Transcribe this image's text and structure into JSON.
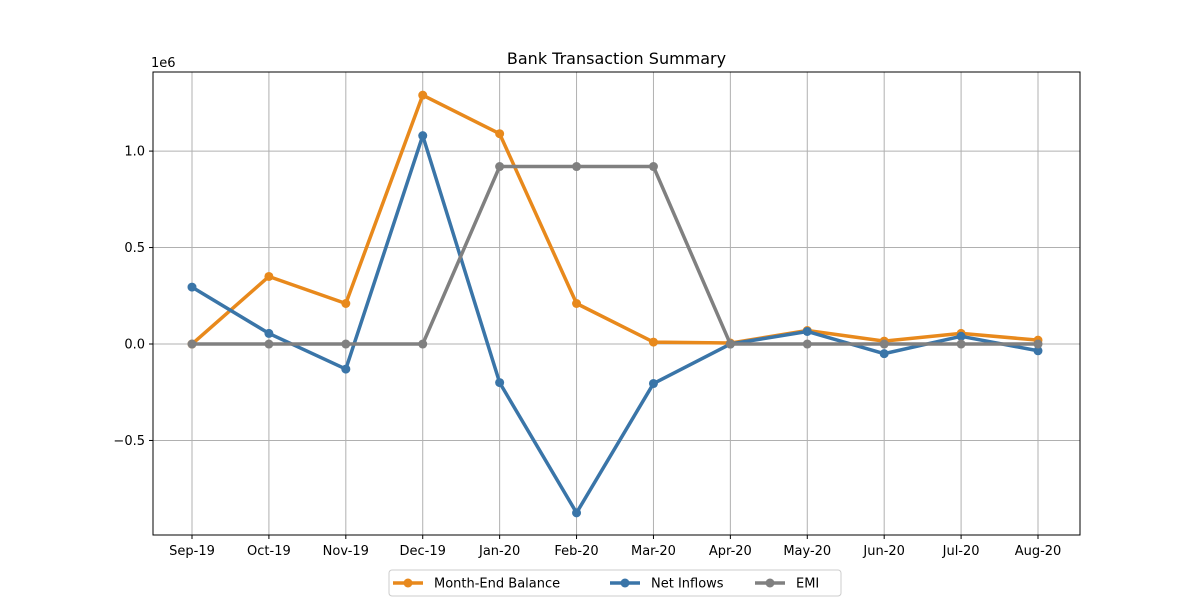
{
  "chart_data": {
    "type": "line",
    "title": "Bank Transaction Summary",
    "xlabel": "",
    "ylabel": "",
    "y_offset_label": "1e6",
    "categories": [
      "Sep-19",
      "Oct-19",
      "Nov-19",
      "Dec-19",
      "Jan-20",
      "Feb-20",
      "Mar-20",
      "Apr-20",
      "May-20",
      "Jun-20",
      "Jul-20",
      "Aug-20"
    ],
    "ylim": [
      -0.99,
      1.41
    ],
    "yticks": [
      -0.5,
      0.0,
      0.5,
      1.0
    ],
    "ytick_labels": [
      "−0.5",
      "0.0",
      "0.5",
      "1.0"
    ],
    "y_unit_scale": 1000000,
    "grid": true,
    "legend_position": "bottom-center",
    "series": [
      {
        "name": "Month-End Balance",
        "color": "#e8891c",
        "values": [
          0.0,
          0.35,
          0.21,
          1.29,
          1.09,
          0.21,
          0.01,
          0.005,
          0.07,
          0.015,
          0.055,
          0.02
        ]
      },
      {
        "name": "Net Inflows",
        "color": "#3a75a8",
        "values": [
          0.295,
          0.055,
          -0.13,
          1.08,
          -0.2,
          -0.875,
          -0.205,
          0.0,
          0.065,
          -0.05,
          0.04,
          -0.035
        ]
      },
      {
        "name": "EMI",
        "color": "#808080",
        "values": [
          0.0,
          0.0,
          0.0,
          0.0,
          0.92,
          0.92,
          0.92,
          0.0,
          0.0,
          0.0,
          0.0,
          0.0
        ]
      }
    ]
  }
}
